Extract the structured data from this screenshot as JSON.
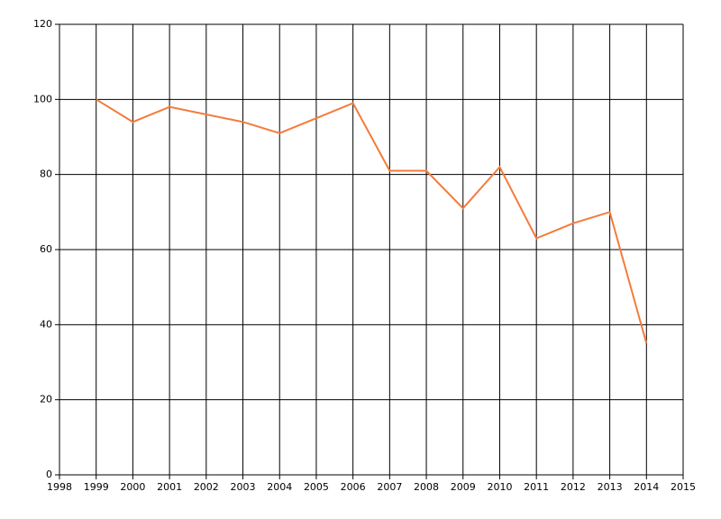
{
  "chart_data": {
    "type": "line",
    "x": [
      1999,
      2000,
      2001,
      2002,
      2003,
      2004,
      2005,
      2006,
      2007,
      2008,
      2009,
      2010,
      2011,
      2012,
      2013,
      2014
    ],
    "series": [
      {
        "color": "#f47b3a",
        "values": [
          100,
          94,
          98,
          96,
          94,
          91,
          95,
          99,
          81,
          81,
          71,
          82,
          63,
          67,
          70,
          35
        ]
      }
    ],
    "xlim": [
      1998,
      2015
    ],
    "xticks": [
      1998,
      1999,
      2000,
      2001,
      2002,
      2003,
      2004,
      2005,
      2006,
      2007,
      2008,
      2009,
      2010,
      2011,
      2012,
      2013,
      2014,
      2015
    ],
    "ylim": [
      0,
      120
    ],
    "yticks": [
      0,
      20,
      40,
      60,
      80,
      100,
      120
    ],
    "grid": true
  }
}
